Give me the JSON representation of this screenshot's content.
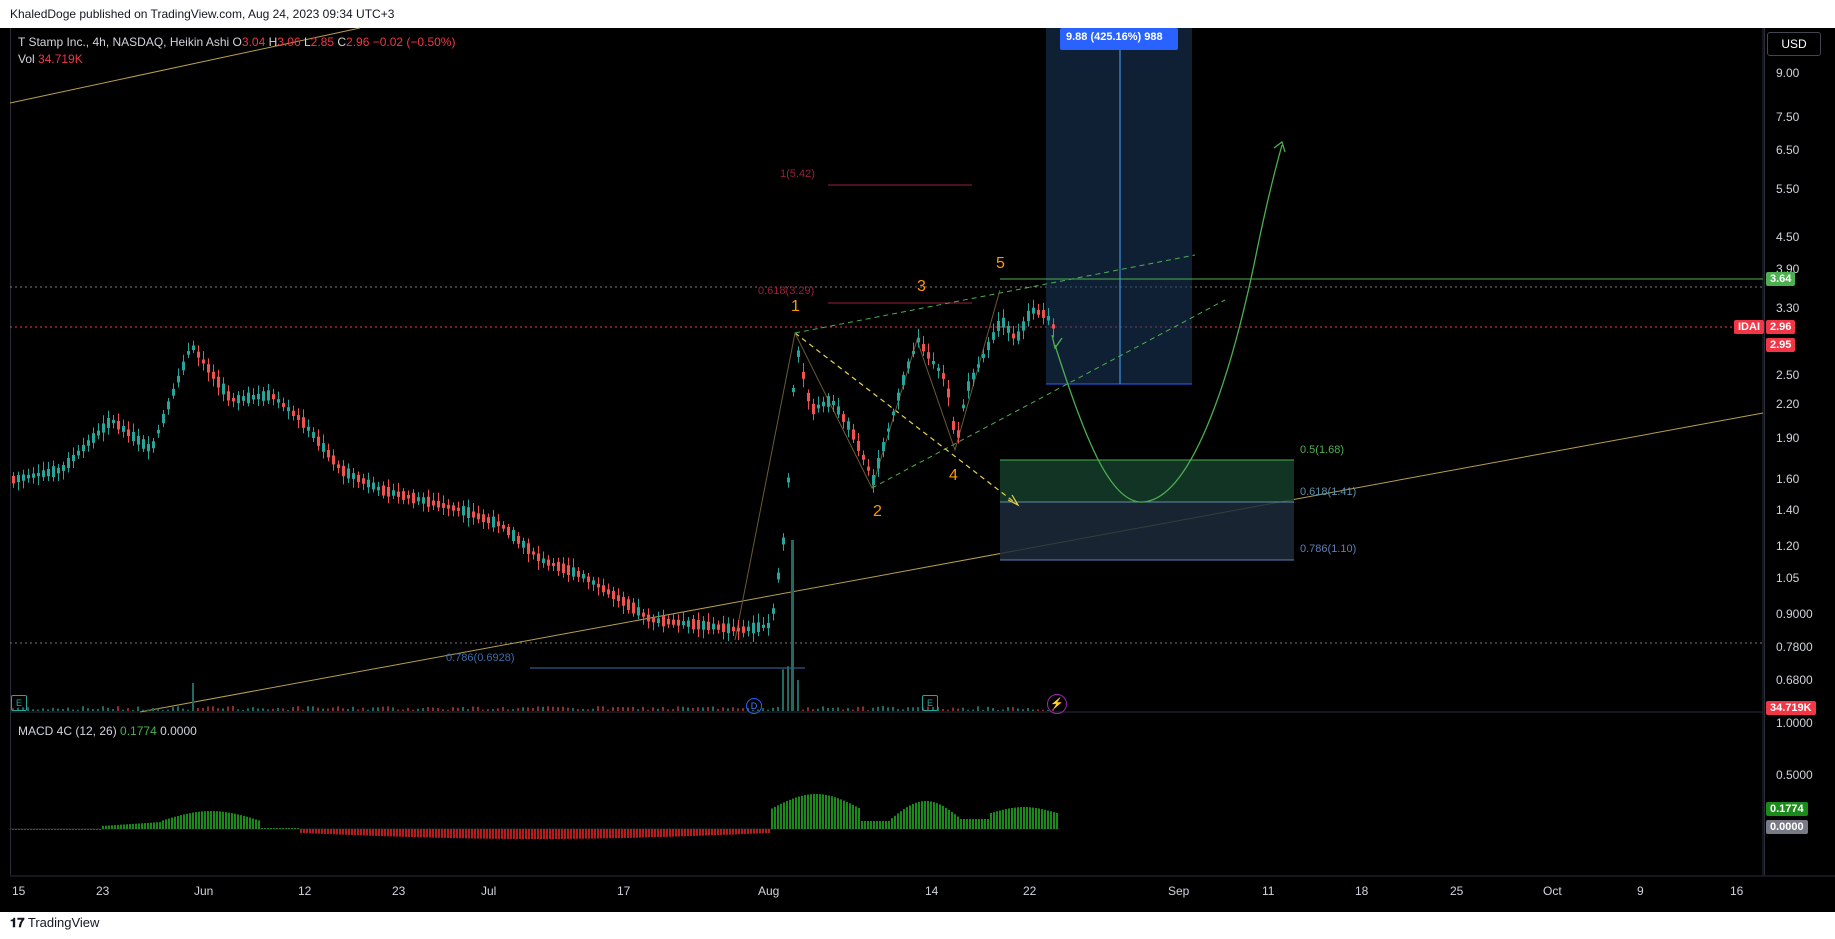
{
  "publisher": "KhaledDoge published on TradingView.com, Aug 24, 2023 09:34 UTC+3",
  "legend": {
    "symbol": "T Stamp Inc., 4h, NASDAQ, Heikin Ashi",
    "o_label": "O",
    "o": "3.04",
    "h_label": "H",
    "h": "3.06",
    "l_label": "L",
    "l": "2.85",
    "c_label": "C",
    "c": "2.96",
    "change": "−0.02 (−0.50%)",
    "vol_label": "Vol",
    "vol": "34.719K"
  },
  "macd_legend": {
    "label": "MACD 4C (12, 26)",
    "v1": "0.1774",
    "v2": "0.0000"
  },
  "currency_button": "USD",
  "price_ticks": [
    "9.00",
    "7.50",
    "6.50",
    "5.50",
    "4.50",
    "3.90",
    "3.30",
    "2.50",
    "2.20",
    "1.90",
    "1.60",
    "1.40",
    "1.20",
    "1.05",
    "0.9000",
    "0.7800",
    "0.6800"
  ],
  "macd_ticks": [
    "1.0000",
    "0.5000"
  ],
  "badges": {
    "target_price": "3.64",
    "symbol_tag": "IDAI",
    "last_price": "2.96",
    "prev_price": "2.95",
    "volume": "34.719K",
    "macd_value": "0.1774",
    "macd_zero": "0.0000"
  },
  "time_ticks": [
    "15",
    "23",
    "Jun",
    "12",
    "23",
    "Jul",
    "17",
    "Aug",
    "14",
    "22",
    "Sep",
    "11",
    "18",
    "25",
    "Oct",
    "9",
    "16"
  ],
  "position_label": "9.88 (425.16%) 988",
  "fib_labels": {
    "ext_1": "1(5.42)",
    "ext_0618": "0.618(3.29)",
    "ret_05": "0.5(1.68)",
    "ret_0618": "0.618(1.41)",
    "ret_0786": "0.786(1.10)",
    "low_0786": "0.786(0.6928)"
  },
  "wave_labels": [
    "1",
    "2",
    "3",
    "4",
    "5"
  ],
  "event_markers": {
    "e1": "E",
    "d": "D",
    "e2": "E"
  },
  "footer_logo": "TradingView",
  "colors": {
    "up": "#26a69a",
    "down": "#ef5350",
    "wave": "#ff9800",
    "target_green": "#4caf50",
    "position_blue": "#2962ff"
  }
}
